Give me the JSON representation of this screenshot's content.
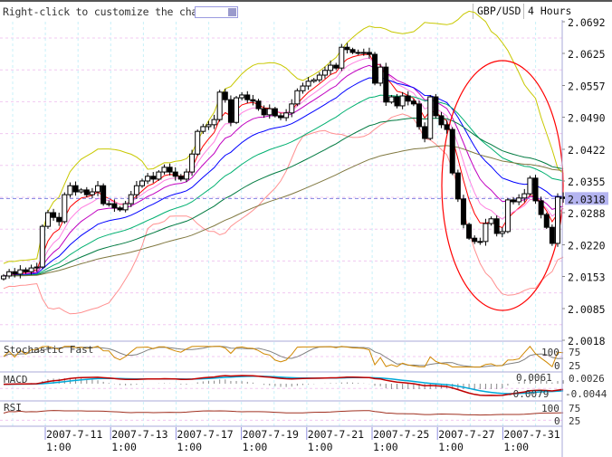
{
  "toolbar": {
    "hint": "Right-click to customize the chart",
    "symbol": "GBP/USD",
    "timeframe": "4 Hours"
  },
  "chart_data": {
    "type": "candlestick",
    "symbol": "GBP/USD",
    "timeframe": "4 Hours",
    "price_axis_ticks": [
      "2.0692",
      "2.0625",
      "2.0557",
      "2.0490",
      "2.0422",
      "2.0355",
      "2.0288",
      "2.0220",
      "2.0153",
      "2.0085",
      "2.0018"
    ],
    "ylim": [
      2.0018,
      2.0692
    ],
    "current_price": "2.0318",
    "closes": [
      2.0154,
      2.0163,
      2.0158,
      2.0167,
      2.0163,
      2.0171,
      2.0173,
      2.0259,
      2.0288,
      2.0278,
      2.0269,
      2.0326,
      2.0345,
      2.0332,
      2.0336,
      2.0326,
      2.0332,
      2.0345,
      2.0307,
      2.0307,
      2.0298,
      2.0294,
      2.0307,
      2.0326,
      2.0345,
      2.0355,
      2.0365,
      2.0359,
      2.0374,
      2.0384,
      2.0374,
      2.0365,
      2.0359,
      2.0374,
      2.0412,
      2.046,
      2.047,
      2.0474,
      2.0485,
      2.0543,
      2.0527,
      2.0479,
      2.0531,
      2.0537,
      2.0527,
      2.0524,
      2.0508,
      2.0495,
      2.0508,
      2.0493,
      2.0489,
      2.0499,
      2.0518,
      2.0546,
      2.0556,
      2.0566,
      2.0569,
      2.0579,
      2.0589,
      2.06,
      2.0594,
      2.0638,
      2.0633,
      2.0627,
      2.0627,
      2.0627,
      2.0623,
      2.0562,
      2.0596,
      2.0522,
      2.0533,
      2.0514,
      2.0535,
      2.0524,
      2.0518,
      2.047,
      2.0445,
      2.0533,
      2.0493,
      2.0474,
      2.0464,
      2.0372,
      2.0317,
      2.0263,
      2.0234,
      2.0227,
      2.0227,
      2.0265,
      2.0275,
      2.0244,
      2.0248,
      2.0315,
      2.0311,
      2.0319,
      2.0328,
      2.0361,
      2.0313,
      2.0284,
      2.0257,
      2.0223,
      2.0321,
      2.0318
    ],
    "x_tick_labels": [
      {
        "date": "2007-7-11",
        "time": "1:00"
      },
      {
        "date": "2007-7-13",
        "time": "1:00"
      },
      {
        "date": "2007-7-17",
        "time": "1:00"
      },
      {
        "date": "2007-7-19",
        "time": "1:00"
      },
      {
        "date": "2007-7-21",
        "time": "1:00"
      },
      {
        "date": "2007-7-25",
        "time": "1:00"
      },
      {
        "date": "2007-7-27",
        "time": "1:00"
      },
      {
        "date": "2007-7-31",
        "time": "1:00"
      }
    ],
    "overlays": {
      "moving_averages": [
        {
          "period": 5,
          "color": "#ff0000"
        },
        {
          "period": 8,
          "color": "#ff80e0"
        },
        {
          "period": 13,
          "color": "#c000c0"
        },
        {
          "period": 21,
          "color": "#0000ff"
        },
        {
          "period": 34,
          "color": "#00b070"
        },
        {
          "period": 55,
          "color": "#007a40"
        },
        {
          "period": 90,
          "color": "#807840"
        }
      ],
      "bollinger": {
        "period": 20,
        "upper_color": "#c8c800",
        "lower_color": "#ff9090"
      },
      "annotation_ellipse_color": "#ff0000"
    },
    "panels": {
      "stochastic": {
        "label": "Stochastic Fast",
        "ticks": [
          "100",
          "75",
          "25",
          "0"
        ],
        "k_color": "#d08800",
        "d_color": "#808080"
      },
      "macd": {
        "label": "MACD",
        "value_labels": [
          "0.0061",
          "-0.0079"
        ],
        "ticks": [
          "0.0026",
          "-0.0044"
        ],
        "macd_color": "#c00000",
        "signal_color": "#00a8d8"
      },
      "rsi": {
        "label": "RSI",
        "ticks": [
          "100",
          "75",
          "25",
          "0"
        ],
        "color": "#a03020"
      }
    },
    "grid": true
  }
}
